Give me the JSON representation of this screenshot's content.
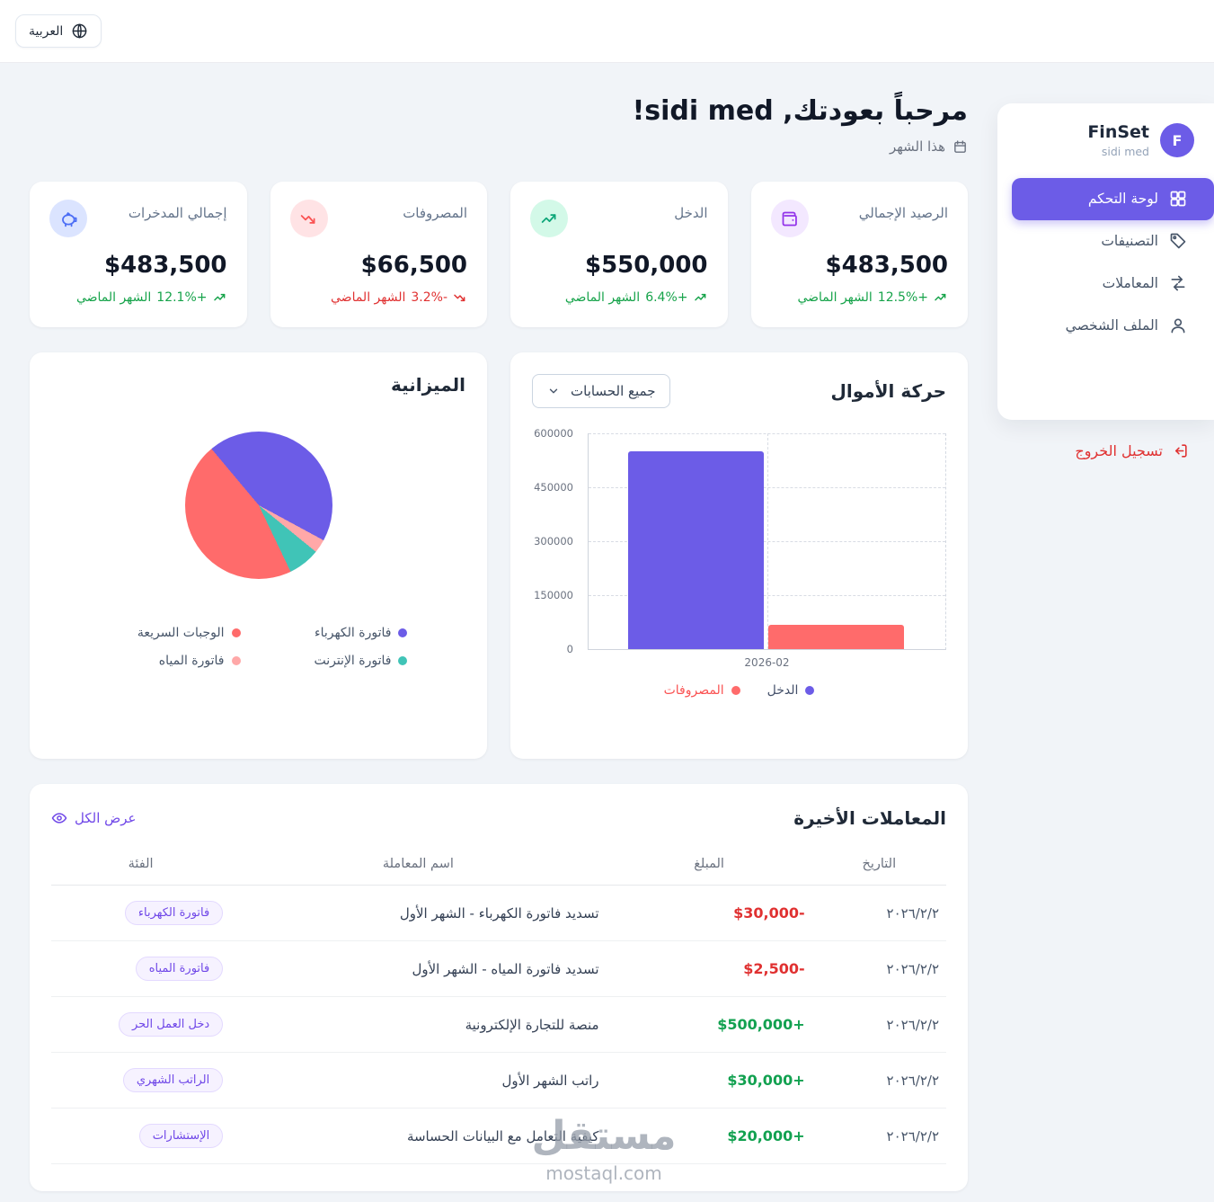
{
  "topbar": {
    "language_label": "العربية"
  },
  "sidebar": {
    "brand": "FinSet",
    "user": "sidi med",
    "avatar_initial": "F",
    "items": [
      {
        "label": "لوحة التحكم",
        "icon": "dashboard-grid-icon",
        "active": true
      },
      {
        "label": "التصنيفات",
        "icon": "tag-icon",
        "active": false
      },
      {
        "label": "المعاملات",
        "icon": "transfer-arrows-icon",
        "active": false
      },
      {
        "label": "الملف الشخصي",
        "icon": "user-icon",
        "active": false
      }
    ],
    "logout_label": "تسجيل الخروج",
    "accent_color": "#6c5ce7"
  },
  "header": {
    "welcome": "مرحباً بعودتك, sidi med!",
    "period": "هذا الشهر"
  },
  "stats": [
    {
      "label": "الرصيد الإجمالي",
      "value": "$483,500",
      "change": "+12.5%",
      "change_note": "الشهر الماضي",
      "trend": "up",
      "icon": "wallet-icon",
      "icon_bg": "#f3e8ff",
      "icon_color": "#9333ea"
    },
    {
      "label": "الدخل",
      "value": "$550,000",
      "change": "+6.4%",
      "change_note": "الشهر الماضي",
      "trend": "up",
      "icon": "trend-up-icon",
      "icon_bg": "#d3f9e8",
      "icon_color": "#0ca678"
    },
    {
      "label": "المصروفات",
      "value": "$66,500",
      "change": "-3.2%",
      "change_note": "الشهر الماضي",
      "trend": "down",
      "icon": "trend-down-icon",
      "icon_bg": "#ffe3e5",
      "icon_color": "#fa5252"
    },
    {
      "label": "إجمالي المدخرات",
      "value": "$483,500",
      "change": "+12.1%",
      "change_note": "الشهر الماضي",
      "trend": "up",
      "icon": "piggy-bank-icon",
      "icon_bg": "#dbe4ff",
      "icon_color": "#4c6ef5"
    }
  ],
  "money_flow": {
    "title": "حركة الأموال",
    "account_filter": "جميع الحسابات"
  },
  "budget": {
    "title": "الميزانية"
  },
  "transactions": {
    "title": "المعاملات الأخيرة",
    "view_all": "عرض الكل",
    "columns": [
      "التاريخ",
      "المبلغ",
      "اسم المعاملة",
      "الفئة"
    ],
    "rows": [
      {
        "date": "٢٠٢٦/٢/٢",
        "amount": "-$30,000",
        "name": "تسديد فاتورة الكهرباء - الشهر الأول",
        "category": "فاتورة الكهرباء",
        "direction": "debit"
      },
      {
        "date": "٢٠٢٦/٢/٢",
        "amount": "-$2,500",
        "name": "تسديد فاتورة المياه - الشهر الأول",
        "category": "فاتورة المياه",
        "direction": "debit"
      },
      {
        "date": "٢٠٢٦/٢/٢",
        "amount": "+$500,000",
        "name": "منصة للتجارة الإلكترونية",
        "category": "دخل العمل الحر",
        "direction": "credit"
      },
      {
        "date": "٢٠٢٦/٢/٢",
        "amount": "+$30,000",
        "name": "راتب الشهر الأول",
        "category": "الراتب الشهري",
        "direction": "credit"
      },
      {
        "date": "٢٠٢٦/٢/٢",
        "amount": "+$20,000",
        "name": "كيفية التعامل مع البيانات الحساسة",
        "category": "الإستشارات",
        "direction": "credit"
      }
    ]
  },
  "watermark": {
    "name": "مستقل",
    "site": "mostaql.com"
  },
  "chart_data": [
    {
      "type": "bar",
      "title": "حركة الأموال",
      "x": [
        "2026-02"
      ],
      "series": [
        {
          "name": "الدخل",
          "values": [
            550000
          ],
          "color": "#6c5ce7",
          "label_color": "#44506a"
        },
        {
          "name": "المصروفات",
          "values": [
            66500
          ],
          "color": "#ff6b6b",
          "label_color": "#fa5252"
        }
      ],
      "ylim": [
        0,
        600000
      ],
      "yticks": [
        0,
        150000,
        300000,
        450000,
        600000
      ],
      "grid": "dashed",
      "legend_position": "bottom"
    },
    {
      "type": "pie",
      "title": "الميزانية",
      "slices": [
        {
          "label": "فاتورة الكهرباء",
          "share_pct": 44,
          "color": "#6c5ce7"
        },
        {
          "label": "الوجبات السريعة",
          "share_pct": 46,
          "color": "#ff6b6b"
        },
        {
          "label": "فاتورة الإنترنت",
          "share_pct": 7,
          "color": "#40c4b7"
        },
        {
          "label": "فاتورة المياه",
          "share_pct": 3,
          "color": "#ffa8a8"
        }
      ],
      "start_angle_deg": -40,
      "draw_order": [
        0,
        3,
        2,
        1
      ],
      "legend_position": "bottom"
    }
  ]
}
